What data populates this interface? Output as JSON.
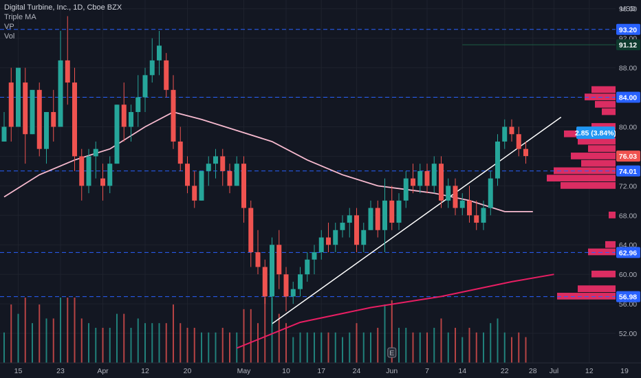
{
  "legend": {
    "title": "Digital Turbine, Inc., 1D, Cboe BZX",
    "indicators": [
      "Triple MA",
      "VP",
      "Vol"
    ]
  },
  "currency": "USD",
  "colors": {
    "background": "#131722",
    "up": "#26a69a",
    "down": "#ef5350",
    "ma_slow": "#e91e63",
    "ma_mid": "#f8bbd0",
    "trendline": "#ffffff",
    "level": "#2962ff",
    "vp": "#f23069"
  },
  "chart_data": {
    "type": "candlestick",
    "title": "Digital Turbine, Inc., 1D, Cboe BZX",
    "ylim": [
      48,
      97
    ],
    "y_ticks": [
      52,
      56,
      60,
      64,
      68,
      72,
      76,
      80,
      84,
      88,
      92,
      96
    ],
    "x_tick_labels": [
      {
        "label": "15",
        "i": 2
      },
      {
        "label": "23",
        "i": 8
      },
      {
        "label": "Apr",
        "i": 14
      },
      {
        "label": "12",
        "i": 20
      },
      {
        "label": "20",
        "i": 26
      },
      {
        "label": "May",
        "i": 34
      },
      {
        "label": "10",
        "i": 40
      },
      {
        "label": "17",
        "i": 45
      },
      {
        "label": "24",
        "i": 50
      },
      {
        "label": "Jun",
        "i": 55
      },
      {
        "label": "7",
        "i": 60
      },
      {
        "label": "14",
        "i": 65
      },
      {
        "label": "22",
        "i": 71
      },
      {
        "label": "28",
        "i": 75
      },
      {
        "label": "Jul",
        "i": 78
      },
      {
        "label": "12",
        "i": 83
      },
      {
        "label": "19",
        "i": 88
      }
    ],
    "candles": [
      [
        78,
        82,
        78,
        80,
        0.55
      ],
      [
        86,
        88,
        78,
        80,
        0.45
      ],
      [
        80,
        88,
        80,
        88,
        0.5
      ],
      [
        86,
        88,
        75,
        79,
        0.5
      ],
      [
        79,
        85,
        79,
        85,
        0.45
      ],
      [
        85,
        86,
        76,
        77,
        0.4
      ],
      [
        77,
        82,
        75,
        82,
        0.45
      ],
      [
        82,
        85,
        78,
        80,
        0.4
      ],
      [
        80,
        93,
        80,
        89,
        0.6
      ],
      [
        89,
        95,
        83,
        86,
        0.7
      ],
      [
        86,
        88,
        74,
        76,
        0.65
      ],
      [
        76,
        77,
        70,
        72,
        0.55
      ],
      [
        72,
        77,
        71,
        76,
        0.5
      ],
      [
        76,
        78,
        73,
        77,
        0.4
      ],
      [
        73,
        75,
        70,
        72,
        0.45
      ],
      [
        72,
        76,
        71,
        75,
        0.45
      ],
      [
        75,
        83,
        75,
        83,
        0.4
      ],
      [
        83,
        86,
        78,
        80,
        0.35
      ],
      [
        80,
        83,
        78,
        82,
        0.35
      ],
      [
        82,
        87,
        80,
        84,
        0.35
      ],
      [
        84,
        88,
        82,
        87,
        0.4
      ],
      [
        87,
        92,
        86,
        89,
        0.45
      ],
      [
        89,
        93,
        87,
        91,
        0.45
      ],
      [
        89,
        90,
        84,
        85,
        0.4
      ],
      [
        85,
        87,
        77,
        78,
        0.5
      ],
      [
        78,
        80,
        74,
        75,
        0.45
      ],
      [
        75,
        76,
        71,
        72,
        0.4
      ],
      [
        72,
        74,
        69,
        70,
        0.4
      ],
      [
        70,
        74,
        70,
        74,
        0.35
      ],
      [
        74,
        76,
        72,
        75,
        0.35
      ],
      [
        75,
        77,
        73,
        76,
        0.35
      ],
      [
        76,
        77,
        72,
        74,
        0.3
      ],
      [
        74,
        75,
        71,
        72,
        0.3
      ],
      [
        72,
        76,
        72,
        75,
        0.35
      ],
      [
        75,
        76,
        67,
        69,
        0.55
      ],
      [
        69,
        70,
        61,
        63,
        0.65
      ],
      [
        63,
        66,
        60,
        61,
        0.55
      ],
      [
        61,
        62,
        56,
        57,
        0.6
      ],
      [
        57,
        65,
        53,
        64,
        0.55
      ],
      [
        64,
        66,
        58,
        60,
        0.45
      ],
      [
        60,
        61,
        55,
        57,
        0.4
      ],
      [
        57,
        59,
        56,
        58,
        0.35
      ],
      [
        58,
        61,
        57,
        60,
        0.35
      ],
      [
        60,
        63,
        59,
        62,
        0.4
      ],
      [
        62,
        64,
        60,
        63,
        0.4
      ],
      [
        63,
        66,
        62,
        65,
        0.4
      ],
      [
        65,
        67,
        63,
        64,
        0.35
      ],
      [
        64,
        67,
        63,
        66,
        0.35
      ],
      [
        66,
        68,
        65,
        67,
        0.35
      ],
      [
        67,
        69,
        65,
        68,
        0.35
      ],
      [
        68,
        69,
        63,
        64,
        0.4
      ],
      [
        64,
        67,
        63,
        66,
        0.35
      ],
      [
        66,
        70,
        66,
        69,
        0.45
      ],
      [
        69,
        70,
        65,
        66,
        0.35
      ],
      [
        66,
        73,
        63,
        70,
        0.55
      ],
      [
        70,
        72,
        66,
        67,
        0.4
      ],
      [
        67,
        71,
        66,
        70,
        0.4
      ],
      [
        70,
        74,
        69,
        73,
        0.45
      ],
      [
        73,
        75,
        71,
        72,
        0.4
      ],
      [
        72,
        75,
        71,
        74,
        0.35
      ],
      [
        74,
        75,
        71,
        72,
        0.35
      ],
      [
        72,
        76,
        71,
        75,
        0.4
      ],
      [
        75,
        76,
        69,
        70,
        0.4
      ],
      [
        70,
        73,
        69,
        72,
        0.35
      ],
      [
        72,
        73,
        68,
        69,
        0.35
      ],
      [
        69,
        71,
        68,
        70,
        0.35
      ],
      [
        70,
        72,
        67,
        68,
        0.35
      ],
      [
        68,
        70,
        66,
        67,
        0.35
      ],
      [
        67,
        70,
        66,
        69,
        0.35
      ],
      [
        69,
        74,
        68,
        73,
        0.45
      ],
      [
        73,
        79,
        72,
        78,
        0.5
      ],
      [
        78,
        81,
        77,
        80,
        0.45
      ],
      [
        80,
        81,
        78,
        79,
        0.4
      ],
      [
        79,
        80,
        76,
        77,
        0.35
      ],
      [
        77,
        78,
        75,
        76.03,
        0.35
      ]
    ],
    "ma_slow": [
      {
        "i": 33,
        "v": 50
      },
      {
        "i": 42,
        "v": 53.5
      },
      {
        "i": 52,
        "v": 55.5
      },
      {
        "i": 62,
        "v": 57
      },
      {
        "i": 72,
        "v": 59
      },
      {
        "i": 78,
        "v": 60
      }
    ],
    "ma_mid": [
      {
        "i": 0,
        "v": 70.5
      },
      {
        "i": 5,
        "v": 73.5
      },
      {
        "i": 10,
        "v": 75.5
      },
      {
        "i": 15,
        "v": 77
      },
      {
        "i": 20,
        "v": 80
      },
      {
        "i": 24,
        "v": 82
      },
      {
        "i": 28,
        "v": 81
      },
      {
        "i": 33,
        "v": 79.5
      },
      {
        "i": 38,
        "v": 78
      },
      {
        "i": 43,
        "v": 75.5
      },
      {
        "i": 48,
        "v": 73.5
      },
      {
        "i": 53,
        "v": 72
      },
      {
        "i": 57,
        "v": 71.5
      },
      {
        "i": 61,
        "v": 71
      },
      {
        "i": 66,
        "v": 70
      },
      {
        "i": 71,
        "v": 68.5
      },
      {
        "i": 75,
        "v": 68.5
      }
    ],
    "trendline": {
      "from": {
        "i": 38,
        "v": 53.3
      },
      "to": {
        "i": 79,
        "v": 81.3
      }
    },
    "levels": [
      93.2,
      84.0,
      74.01,
      62.96,
      56.98
    ],
    "resistance_line": {
      "v": 91.12,
      "from_i": 65
    },
    "volume_profile": [
      {
        "v": 85,
        "w": 0.35
      },
      {
        "v": 84,
        "w": 0.45
      },
      {
        "v": 83,
        "w": 0.3
      },
      {
        "v": 82,
        "w": 0.2
      },
      {
        "v": 80,
        "w": 0.35
      },
      {
        "v": 79,
        "w": 0.75
      },
      {
        "v": 78,
        "w": 0.55
      },
      {
        "v": 77,
        "w": 0.4
      },
      {
        "v": 76,
        "w": 0.65
      },
      {
        "v": 75,
        "w": 0.5
      },
      {
        "v": 74,
        "w": 0.9
      },
      {
        "v": 73,
        "w": 1.0
      },
      {
        "v": 72,
        "w": 0.8
      },
      {
        "v": 68,
        "w": 0.1
      },
      {
        "v": 64,
        "w": 0.15
      },
      {
        "v": 63,
        "w": 0.4
      },
      {
        "v": 60,
        "w": 0.35
      },
      {
        "v": 58,
        "w": 0.55
      },
      {
        "v": 57,
        "w": 0.85
      }
    ],
    "price_badges": [
      {
        "label": "93.20",
        "v": 93.2,
        "color": "#2962ff"
      },
      {
        "label": "91.12",
        "v": 91.12,
        "color": "#0e3b2e"
      },
      {
        "label": "84.00",
        "v": 84.0,
        "color": "#2962ff"
      },
      {
        "label": "76.03",
        "v": 76.03,
        "color": "#ef5350"
      },
      {
        "label": "74.01",
        "v": 74.01,
        "color": "#2962ff"
      },
      {
        "label": "62.96",
        "v": 62.96,
        "color": "#2962ff"
      },
      {
        "label": "56.98",
        "v": 56.98,
        "color": "#2962ff"
      }
    ],
    "change_label": {
      "text": "2.85 (3.84%)",
      "v": 79.2
    },
    "earnings_marker": {
      "label": "E",
      "i": 55
    }
  }
}
